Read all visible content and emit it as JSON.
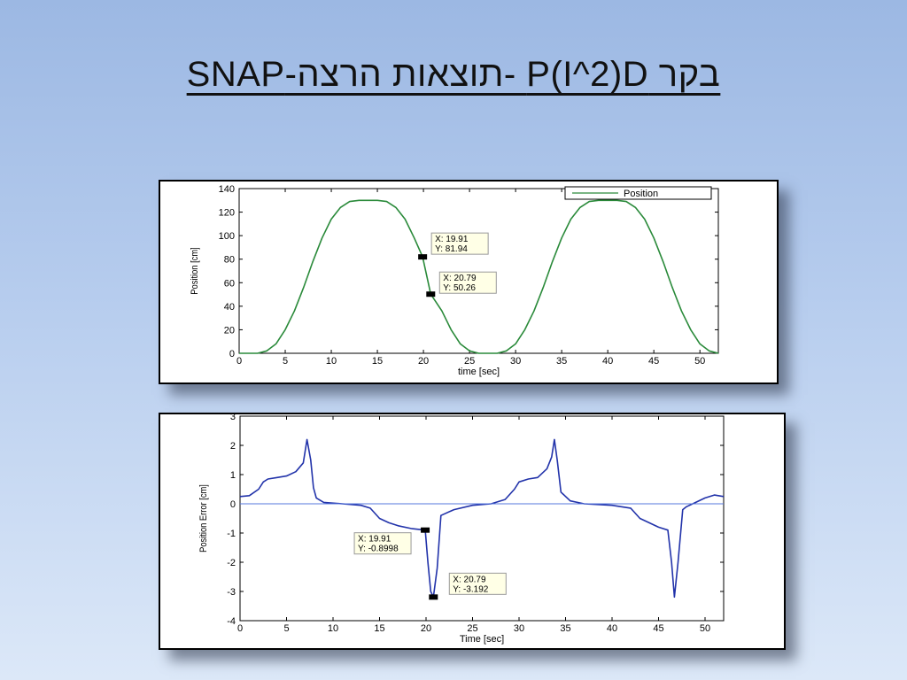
{
  "slide": {
    "title": "בקר P(I^2)D -תוצאות הרצה-SNAP"
  },
  "chart_data": [
    {
      "type": "line",
      "title": "",
      "xlabel": "time [sec]",
      "ylabel": "Position [cm]",
      "xlim": [
        0,
        52
      ],
      "ylim": [
        0,
        140
      ],
      "xticks": [
        0,
        5,
        10,
        15,
        20,
        25,
        30,
        35,
        40,
        45,
        50
      ],
      "yticks": [
        0,
        20,
        40,
        60,
        80,
        100,
        120,
        140
      ],
      "grid": false,
      "legend": {
        "position": "top-right",
        "entries": [
          "Position"
        ]
      },
      "series": [
        {
          "name": "Position",
          "color": "#2a8a3a",
          "x": [
            0,
            2,
            3,
            4,
            5,
            6,
            7,
            8,
            9,
            10,
            11,
            12,
            13,
            14,
            15,
            16,
            17,
            18,
            19,
            19.91,
            20.79,
            22,
            23,
            24,
            25,
            26,
            27,
            28,
            29,
            30,
            31,
            32,
            33,
            34,
            35,
            36,
            37,
            38,
            39,
            40,
            41,
            42,
            43,
            44,
            45,
            46,
            47,
            48,
            49,
            50,
            51,
            52
          ],
          "y": [
            0,
            0,
            2,
            8,
            20,
            36,
            56,
            78,
            98,
            114,
            124,
            129,
            130,
            130,
            130,
            129,
            124,
            114,
            98,
            81.94,
            50.26,
            36,
            20,
            8,
            2,
            0,
            0,
            0,
            2,
            8,
            20,
            36,
            56,
            78,
            98,
            114,
            124,
            129,
            130,
            130,
            130,
            129,
            124,
            114,
            98,
            78,
            56,
            36,
            20,
            8,
            2,
            0
          ]
        }
      ],
      "datatips": [
        {
          "x_label": "X: 19.91",
          "y_label": "Y: 81.94",
          "x": 19.91,
          "y": 81.94
        },
        {
          "x_label": "X: 20.79",
          "y_label": "Y: 50.26",
          "x": 20.79,
          "y": 50.26
        }
      ]
    },
    {
      "type": "line",
      "title": "",
      "xlabel": "Time [sec]",
      "ylabel": "Position Error [cm]",
      "xlim": [
        0,
        52
      ],
      "ylim": [
        -4,
        3
      ],
      "xticks": [
        0,
        5,
        10,
        15,
        20,
        25,
        30,
        35,
        40,
        45,
        50
      ],
      "yticks": [
        -4,
        -3,
        -2,
        -1,
        0,
        1,
        2,
        3
      ],
      "grid": false,
      "series": [
        {
          "name": "",
          "color": "#2233aa",
          "x": [
            0,
            1,
            2,
            2.5,
            3,
            4,
            5,
            6,
            6.8,
            7.2,
            7.6,
            7.9,
            8.2,
            9,
            11,
            13,
            14,
            15,
            16,
            17,
            18.5,
            19.91,
            20.2,
            20.5,
            20.79,
            21.2,
            21.6,
            23,
            25,
            27,
            28.5,
            29.5,
            30,
            31,
            32,
            33,
            33.5,
            33.8,
            34.1,
            34.5,
            35.5,
            37,
            40,
            42,
            43,
            45,
            46,
            46.4,
            46.7,
            47.1,
            47.6,
            48,
            49,
            50,
            51,
            52
          ],
          "y": [
            0.25,
            0.28,
            0.5,
            0.75,
            0.85,
            0.9,
            0.95,
            1.1,
            1.4,
            2.2,
            1.5,
            0.55,
            0.2,
            0.05,
            0,
            -0.05,
            -0.15,
            -0.5,
            -0.65,
            -0.75,
            -0.85,
            -0.9,
            -2.0,
            -3.0,
            -3.19,
            -2.2,
            -0.4,
            -0.2,
            -0.05,
            0,
            0.15,
            0.5,
            0.75,
            0.85,
            0.9,
            1.2,
            1.6,
            2.2,
            1.5,
            0.4,
            0.1,
            0,
            -0.05,
            -0.15,
            -0.5,
            -0.8,
            -0.9,
            -2.0,
            -3.19,
            -2.0,
            -0.2,
            -0.1,
            0.05,
            0.2,
            0.3,
            0.25
          ]
        },
        {
          "name": "",
          "color": "#5577dd",
          "x": [
            0,
            52
          ],
          "y": [
            0,
            0
          ]
        }
      ],
      "datatips": [
        {
          "x_label": "X: 19.91",
          "y_label": "Y: -0.8998",
          "x": 19.91,
          "y": -0.8998
        },
        {
          "x_label": "X: 20.79",
          "y_label": "Y: -3.192",
          "x": 20.79,
          "y": -3.192
        }
      ]
    }
  ]
}
